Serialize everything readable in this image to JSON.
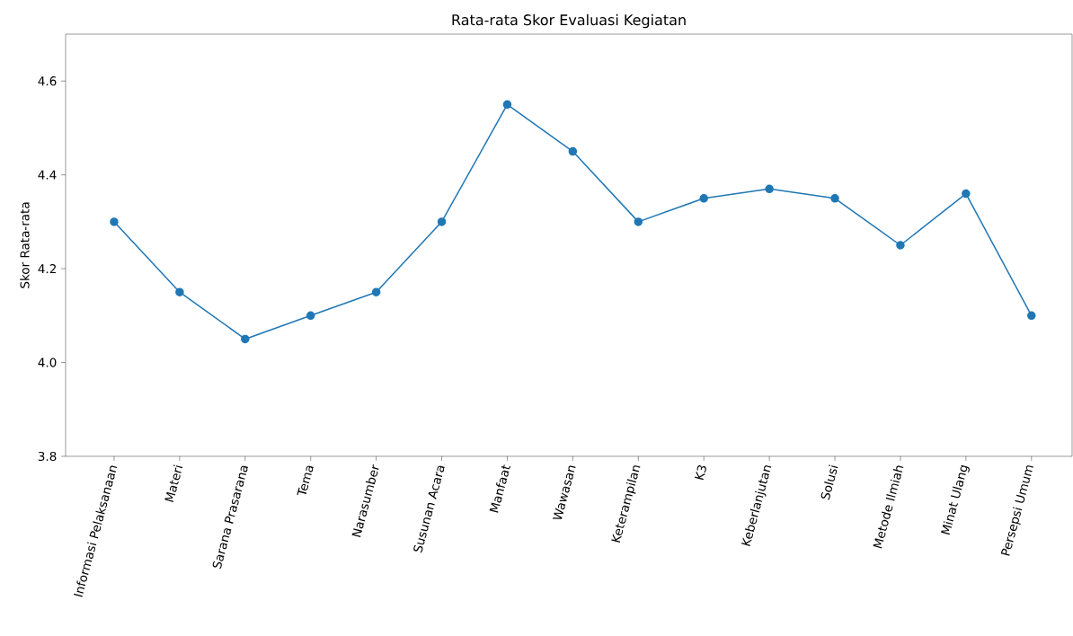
{
  "chart_data": {
    "type": "line",
    "title": "Rata-rata Skor Evaluasi Kegiatan",
    "ylabel": "Skor Rata-rata",
    "categories": [
      "Informasi Pelaksanaan",
      "Materi",
      "Sarana Prasarana",
      "Tema",
      "Narasumber",
      "Susunan Acara",
      "Manfaat",
      "Wawasan",
      "Keterampilan",
      "K3",
      "Keberlanjutan",
      "Solusi",
      "Metode Ilmiah",
      "Minat Ulang",
      "Persepsi Umum"
    ],
    "values": [
      4.3,
      4.15,
      4.05,
      4.1,
      4.15,
      4.3,
      4.55,
      4.45,
      4.3,
      4.35,
      4.37,
      4.35,
      4.25,
      4.36,
      4.1
    ],
    "color": "#1f77b4",
    "marker": "circle",
    "line_style": "solid",
    "grid": false,
    "ylim": [
      3.8,
      4.7
    ],
    "yticks": [
      {
        "value": 3.8,
        "label": "3.8"
      },
      {
        "value": 4.0,
        "label": "4.0"
      },
      {
        "value": 4.2,
        "label": "4.2"
      },
      {
        "value": 4.4,
        "label": "4.4"
      },
      {
        "value": 4.6,
        "label": "4.6"
      }
    ]
  }
}
